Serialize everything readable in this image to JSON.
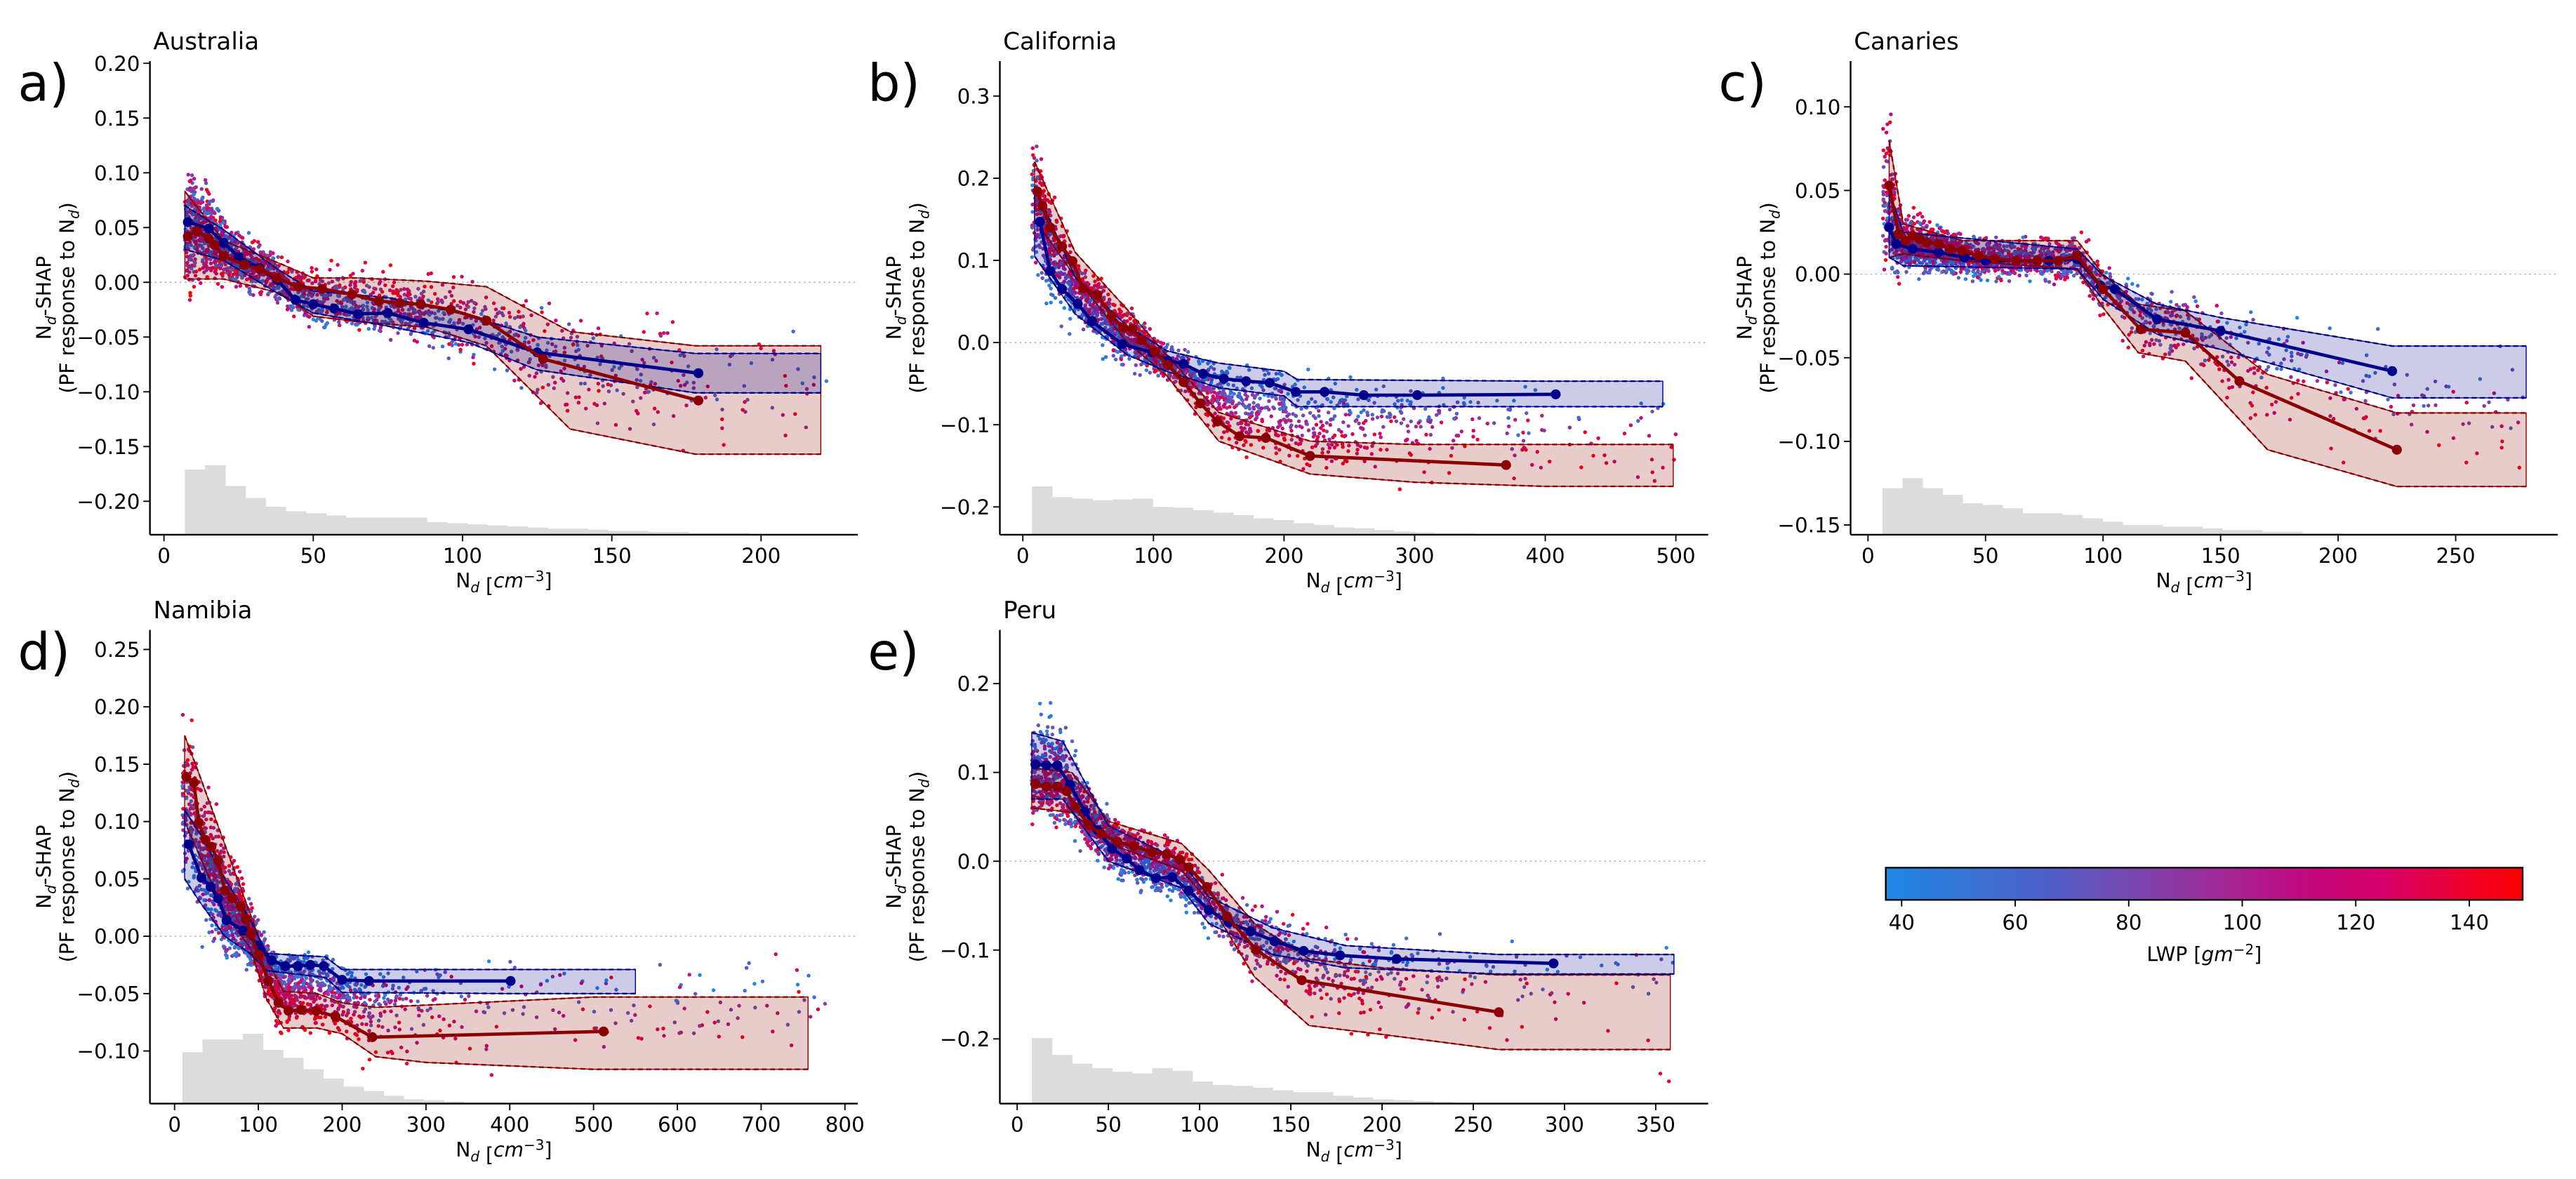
{
  "labels": {
    "y_n": "N",
    "y_sub": "d",
    "y_rest": "-SHAP",
    "y2_pre": "(PF response to N",
    "y2_sub": "d",
    "y2_post": ")",
    "x_n": "N",
    "x_sub": "d",
    "x_open": " [",
    "x_unit": "cm",
    "x_exp": "−3",
    "x_close": "]"
  },
  "colorbar": {
    "label_pre": "LWP [",
    "label_unit": "gm",
    "label_exp": "−2",
    "label_close": "]",
    "range": [
      37.2,
      149.4
    ],
    "ticks": [
      "40",
      "60",
      "80",
      "100",
      "120",
      "140"
    ],
    "colors": [
      [
        0,
        "#1f88e5"
      ],
      [
        0.25,
        "#4e60c8"
      ],
      [
        0.45,
        "#8a3aa3"
      ],
      [
        0.65,
        "#c20a80"
      ],
      [
        0.78,
        "#d6006a"
      ],
      [
        1,
        "#ff0000"
      ]
    ]
  },
  "style": {
    "low_lwp_color": "#00008b",
    "high_lwp_color": "#8b0000",
    "hist_color": "#dcdcdc",
    "zero_line_color": "#aaaaaa"
  },
  "chart_data": [
    {
      "type": "scatter",
      "panel_label": "a)",
      "title": "Australia",
      "xlabel": "N_d [cm^-3]",
      "ylabel": "N_d-SHAP (PF response to N_d)",
      "xlim": [
        -4.7,
        232.4
      ],
      "ylim": [
        -0.2305,
        0.2021
      ],
      "xticks": [
        "0",
        "50",
        "100",
        "150",
        "200"
      ],
      "yticks": [
        "−0.20",
        "−0.15",
        "−0.10",
        "−0.05",
        "0.00",
        "0.05",
        "0.10",
        "0.15",
        "0.20"
      ],
      "scatter_x_max": 222,
      "low_lwp_line": {
        "x": [
          8,
          15,
          20,
          25,
          32,
          38,
          44,
          50,
          57,
          65,
          75,
          87,
          102,
          125,
          179
        ],
        "y": [
          0.055,
          0.049,
          0.036,
          0.023,
          0.013,
          0.002,
          -0.016,
          -0.02,
          -0.024,
          -0.029,
          -0.028,
          -0.037,
          -0.043,
          -0.064,
          -0.083
        ]
      },
      "high_lwp_line": {
        "x": [
          8,
          11,
          15,
          17,
          20,
          27,
          32,
          38,
          45,
          53,
          63,
          72,
          79,
          86,
          96,
          108,
          127,
          179
        ],
        "y": [
          0.042,
          0.047,
          0.04,
          0.034,
          0.024,
          0.016,
          0.012,
          0.004,
          -0.004,
          -0.006,
          -0.011,
          -0.017,
          -0.019,
          -0.02,
          -0.025,
          -0.035,
          -0.07,
          -0.108
        ]
      },
      "low_lwp_band": {
        "x": [
          7,
          20,
          38,
          50,
          75,
          102,
          125,
          178,
          220
        ],
        "upper": [
          0.07,
          0.048,
          0.012,
          -0.008,
          -0.014,
          -0.03,
          -0.05,
          -0.065,
          -0.065
        ],
        "lower": [
          0.03,
          0.02,
          -0.01,
          -0.028,
          -0.04,
          -0.055,
          -0.08,
          -0.101,
          -0.101
        ]
      },
      "high_lwp_band": {
        "x": [
          7,
          20,
          39,
          50,
          65,
          88,
          108,
          136,
          178,
          220
        ],
        "upper": [
          0.083,
          0.038,
          0.017,
          0.004,
          0.004,
          0.001,
          -0.004,
          -0.045,
          -0.058,
          -0.058
        ],
        "lower": [
          0.003,
          0.003,
          -0.01,
          -0.031,
          -0.036,
          -0.041,
          -0.058,
          -0.134,
          -0.157,
          -0.157
        ]
      },
      "hist": {
        "start": 7,
        "bin_width": 6.75,
        "tops": [
          -0.171,
          -0.167,
          -0.186,
          -0.197,
          -0.205,
          -0.209,
          -0.211,
          -0.213,
          -0.215,
          -0.215,
          -0.215,
          -0.215,
          -0.219,
          -0.22,
          -0.221,
          -0.222,
          -0.223,
          -0.224,
          -0.225,
          -0.225,
          -0.226,
          -0.227,
          -0.227,
          -0.228,
          -0.228,
          -0.229,
          -0.229,
          -0.229
        ]
      }
    },
    {
      "type": "scatter",
      "panel_label": "b)",
      "title": "California",
      "xlabel": "N_d [cm^-3]",
      "ylabel": "N_d-SHAP (PF response to N_d)",
      "xlim": [
        -17.6,
        524.8
      ],
      "ylim": [
        -0.2338,
        0.3426
      ],
      "xticks": [
        "0",
        "100",
        "200",
        "300",
        "400",
        "500"
      ],
      "yticks": [
        "−0.2",
        "−0.1",
        "0.0",
        "0.1",
        "0.2",
        "0.3"
      ],
      "scatter_x_max": 500,
      "low_lwp_line": {
        "x": [
          13,
          21,
          30,
          42,
          53,
          76,
          99,
          111,
          123,
          138,
          154,
          171,
          189,
          209,
          231,
          261,
          302,
          408
        ],
        "y": [
          0.147,
          0.087,
          0.065,
          0.047,
          0.026,
          -0.002,
          -0.012,
          -0.022,
          -0.026,
          -0.038,
          -0.044,
          -0.047,
          -0.049,
          -0.06,
          -0.06,
          -0.064,
          -0.064,
          -0.063
        ]
      },
      "high_lwp_line": {
        "x": [
          11,
          15,
          21,
          30,
          38,
          46,
          57,
          68,
          77,
          84,
          91,
          101,
          111,
          123,
          136,
          149,
          166,
          186,
          220,
          370
        ],
        "y": [
          0.184,
          0.166,
          0.14,
          0.117,
          0.099,
          0.066,
          0.058,
          0.032,
          0.018,
          0.017,
          0.003,
          -0.011,
          -0.027,
          -0.048,
          -0.074,
          -0.096,
          -0.114,
          -0.116,
          -0.138,
          -0.149
        ]
      },
      "low_lwp_band": {
        "x": [
          9,
          40,
          80,
          110,
          150,
          200,
          210,
          400,
          490
        ],
        "upper": [
          0.19,
          0.08,
          0.02,
          -0.01,
          -0.025,
          -0.035,
          -0.045,
          -0.047,
          -0.047
        ],
        "lower": [
          0.105,
          0.035,
          -0.015,
          -0.035,
          -0.055,
          -0.065,
          -0.078,
          -0.078,
          -0.078
        ]
      },
      "high_lwp_band": {
        "x": [
          9,
          40,
          80,
          110,
          150,
          220,
          300,
          400,
          498
        ],
        "upper": [
          0.22,
          0.11,
          0.04,
          -0.015,
          -0.085,
          -0.12,
          -0.124,
          -0.124,
          -0.124
        ],
        "lower": [
          0.15,
          0.08,
          0.0,
          -0.04,
          -0.12,
          -0.16,
          -0.17,
          -0.175,
          -0.175
        ]
      },
      "hist": {
        "start": 7,
        "bin_width": 15.4,
        "tops": [
          -0.175,
          -0.188,
          -0.19,
          -0.192,
          -0.191,
          -0.19,
          -0.2,
          -0.201,
          -0.204,
          -0.207,
          -0.21,
          -0.214,
          -0.216,
          -0.22,
          -0.222,
          -0.225,
          -0.226,
          -0.228,
          -0.23,
          -0.231,
          -0.232,
          -0.232,
          -0.233,
          -0.233,
          -0.233
        ]
      }
    },
    {
      "type": "scatter",
      "panel_label": "c)",
      "title": "Canaries",
      "xlabel": "N_d [cm^-3]",
      "ylabel": "N_d-SHAP (PF response to N_d)",
      "xlim": [
        -7.4,
        293.4
      ],
      "ylim": [
        -0.1558,
        0.1274
      ],
      "xticks": [
        "0",
        "50",
        "100",
        "150",
        "200",
        "250"
      ],
      "yticks": [
        "−0.15",
        "−0.10",
        "−0.05",
        "0.00",
        "0.05",
        "0.10"
      ],
      "scatter_x_max": 280,
      "low_lwp_line": {
        "x": [
          9,
          12,
          19,
          30,
          41,
          50,
          63,
          77,
          89,
          99,
          105,
          123,
          150,
          223
        ],
        "y": [
          0.028,
          0.018,
          0.015,
          0.013,
          0.01,
          0.008,
          0.008,
          0.008,
          0.009,
          -0.007,
          -0.009,
          -0.027,
          -0.034,
          -0.058
        ]
      },
      "high_lwp_line": {
        "x": [
          9,
          13,
          16,
          19,
          22,
          25,
          30,
          35,
          40,
          47,
          54,
          63,
          72,
          81,
          89,
          100,
          116,
          135,
          158,
          225
        ],
        "y": [
          0.053,
          0.024,
          0.02,
          0.023,
          0.021,
          0.019,
          0.018,
          0.015,
          0.014,
          0.011,
          0.009,
          0.008,
          0.008,
          0.008,
          0.011,
          -0.009,
          -0.033,
          -0.035,
          -0.064,
          -0.105
        ]
      },
      "low_lwp_band": {
        "x": [
          9,
          15,
          89,
          100,
          123,
          150,
          223,
          280
        ],
        "upper": [
          0.05,
          0.025,
          0.015,
          -0.001,
          -0.018,
          -0.026,
          -0.043,
          -0.043
        ],
        "lower": [
          0.01,
          0.005,
          0.003,
          -0.015,
          -0.036,
          -0.045,
          -0.074,
          -0.074
        ]
      },
      "high_lwp_band": {
        "x": [
          9,
          15,
          40,
          89,
          100,
          115,
          135,
          170,
          225,
          280
        ],
        "upper": [
          0.08,
          0.03,
          0.02,
          0.02,
          0.0,
          -0.018,
          -0.022,
          -0.06,
          -0.083,
          -0.083
        ],
        "lower": [
          0.01,
          0.012,
          0.008,
          0.003,
          -0.02,
          -0.047,
          -0.052,
          -0.105,
          -0.127,
          -0.127
        ]
      },
      "hist": {
        "start": 6.2,
        "bin_width": 8.5,
        "tops": [
          -0.128,
          -0.122,
          -0.128,
          -0.132,
          -0.137,
          -0.138,
          -0.14,
          -0.143,
          -0.143,
          -0.144,
          -0.146,
          -0.148,
          -0.15,
          -0.15,
          -0.151,
          -0.151,
          -0.152,
          -0.153,
          -0.153,
          -0.154,
          -0.154,
          -0.155,
          -0.155,
          -0.156,
          -0.156,
          -0.156,
          -0.156,
          -0.156
        ]
      }
    },
    {
      "type": "scatter",
      "panel_label": "d)",
      "title": "Namibia",
      "xlabel": "N_d [cm^-3]",
      "ylabel": "N_d-SHAP (PF response to N_d)",
      "xlim": [
        -29.4,
        815.4
      ],
      "ylim": [
        -0.1459,
        0.267
      ],
      "xticks": [
        "0",
        "100",
        "200",
        "300",
        "400",
        "500",
        "600",
        "700",
        "800"
      ],
      "yticks": [
        "−0.10",
        "−0.05",
        "0.00",
        "0.05",
        "0.10",
        "0.15",
        "0.20",
        "0.25"
      ],
      "scatter_x_max": 780,
      "low_lwp_line": {
        "x": [
          17,
          32,
          43,
          52,
          62,
          82,
          100,
          116,
          132,
          147,
          162,
          178,
          200,
          232,
          401
        ],
        "y": [
          0.08,
          0.051,
          0.043,
          0.033,
          0.014,
          0.005,
          -0.008,
          -0.021,
          -0.026,
          -0.026,
          -0.025,
          -0.026,
          -0.038,
          -0.039,
          -0.039
        ]
      },
      "high_lwp_line": {
        "x": [
          14,
          23,
          29,
          37,
          44,
          52,
          60,
          69,
          79,
          85,
          91,
          100,
          112,
          124,
          136,
          151,
          169,
          192,
          236,
          512
        ],
        "y": [
          0.139,
          0.134,
          0.099,
          0.084,
          0.078,
          0.066,
          0.04,
          0.033,
          0.026,
          0.015,
          0.002,
          -0.016,
          -0.039,
          -0.058,
          -0.065,
          -0.064,
          -0.065,
          -0.07,
          -0.088,
          -0.083
        ]
      },
      "low_lwp_band": {
        "x": [
          12,
          30,
          60,
          90,
          110,
          180,
          200,
          400,
          550
        ],
        "upper": [
          0.11,
          0.09,
          0.05,
          0.015,
          -0.015,
          -0.018,
          -0.029,
          -0.029,
          -0.029
        ],
        "lower": [
          0.05,
          0.03,
          0.0,
          -0.015,
          -0.03,
          -0.036,
          -0.049,
          -0.05,
          -0.05
        ]
      },
      "high_lwp_band": {
        "x": [
          12,
          30,
          60,
          90,
          110,
          130,
          170,
          200,
          240,
          300,
          500,
          756
        ],
        "upper": [
          0.175,
          0.14,
          0.08,
          0.02,
          -0.02,
          -0.048,
          -0.05,
          -0.058,
          -0.062,
          -0.06,
          -0.053,
          -0.053
        ],
        "lower": [
          0.1,
          0.07,
          0.02,
          -0.01,
          -0.055,
          -0.08,
          -0.08,
          -0.085,
          -0.105,
          -0.11,
          -0.116,
          -0.116
        ]
      },
      "hist": {
        "start": 9.3,
        "bin_width": 24,
        "tops": [
          -0.101,
          -0.09,
          -0.09,
          -0.085,
          -0.099,
          -0.106,
          -0.116,
          -0.124,
          -0.131,
          -0.135,
          -0.139,
          -0.142,
          -0.143,
          -0.144,
          -0.145,
          -0.145
        ]
      }
    },
    {
      "type": "scatter",
      "panel_label": "e)",
      "title": "Peru",
      "xlabel": "N_d [cm^-3]",
      "ylabel": "N_d-SHAP (PF response to N_d)",
      "xlim": [
        -9.5,
        378.8
      ],
      "ylim": [
        -0.2729,
        0.2604
      ],
      "xticks": [
        "0",
        "50",
        "100",
        "150",
        "200",
        "250",
        "300",
        "350"
      ],
      "yticks": [
        "−0.2",
        "−0.1",
        "0.0",
        "0.1",
        "0.2"
      ],
      "scatter_x_max": 360,
      "low_lwp_line": {
        "x": [
          10,
          16,
          22,
          29,
          37,
          44,
          52,
          60,
          67,
          76,
          85,
          94,
          105,
          116,
          128,
          141,
          157,
          177,
          208,
          294
        ],
        "y": [
          0.109,
          0.108,
          0.108,
          0.086,
          0.056,
          0.035,
          0.014,
          0.003,
          -0.01,
          -0.019,
          -0.018,
          -0.033,
          -0.055,
          -0.069,
          -0.079,
          -0.09,
          -0.101,
          -0.106,
          -0.11,
          -0.115
        ]
      },
      "high_lwp_line": {
        "x": [
          10,
          16,
          22,
          27,
          32,
          39,
          46,
          55,
          64,
          74,
          82,
          89,
          94,
          104,
          115,
          131,
          156,
          264
        ],
        "y": [
          0.087,
          0.084,
          0.084,
          0.079,
          0.061,
          0.041,
          0.031,
          0.022,
          0.017,
          0.01,
          0.008,
          0.002,
          -0.007,
          -0.029,
          -0.062,
          -0.1,
          -0.134,
          -0.17
        ]
      },
      "low_lwp_band": {
        "x": [
          8,
          25,
          50,
          90,
          105,
          140,
          180,
          264,
          360
        ],
        "upper": [
          0.145,
          0.135,
          0.04,
          0.0,
          -0.04,
          -0.075,
          -0.095,
          -0.105,
          -0.105
        ],
        "lower": [
          0.07,
          0.07,
          0.0,
          -0.03,
          -0.07,
          -0.105,
          -0.12,
          -0.127,
          -0.127
        ]
      },
      "high_lwp_band": {
        "x": [
          8,
          30,
          50,
          90,
          105,
          130,
          160,
          200,
          264,
          358
        ],
        "upper": [
          0.105,
          0.1,
          0.045,
          0.02,
          -0.01,
          -0.07,
          -0.11,
          -0.12,
          -0.128,
          -0.128
        ],
        "lower": [
          0.06,
          0.055,
          0.02,
          -0.01,
          -0.045,
          -0.13,
          -0.185,
          -0.195,
          -0.212,
          -0.212
        ]
      },
      "hist": {
        "start": 8,
        "bin_width": 11,
        "tops": [
          -0.199,
          -0.218,
          -0.228,
          -0.233,
          -0.237,
          -0.239,
          -0.233,
          -0.236,
          -0.248,
          -0.252,
          -0.253,
          -0.255,
          -0.258,
          -0.26,
          -0.26,
          -0.264,
          -0.266,
          -0.268,
          -0.269,
          -0.27,
          -0.271,
          -0.272
        ]
      }
    }
  ]
}
